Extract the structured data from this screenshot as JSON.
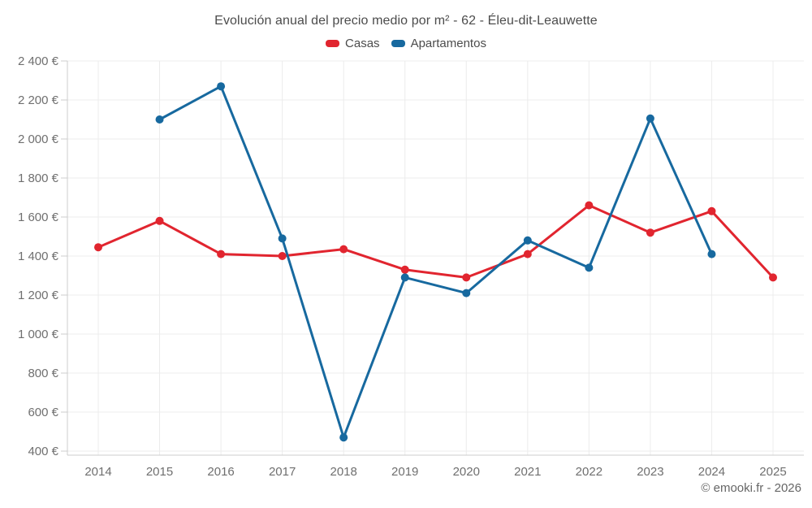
{
  "chart_data": {
    "type": "line",
    "title": "Evolución anual del precio medio por m² - 62 - Éleu-dit-Leauwette",
    "categories": [
      "2014",
      "2015",
      "2016",
      "2017",
      "2018",
      "2019",
      "2020",
      "2021",
      "2022",
      "2023",
      "2024",
      "2025"
    ],
    "series": [
      {
        "name": "Casas",
        "color": "#e1252f",
        "values": [
          1445,
          1580,
          1410,
          1400,
          1435,
          1330,
          1290,
          1410,
          1660,
          1520,
          1630,
          1290
        ]
      },
      {
        "name": "Apartamentos",
        "color": "#17699f",
        "values": [
          null,
          2100,
          2270,
          1490,
          470,
          1290,
          1210,
          1480,
          1340,
          2105,
          1410,
          null
        ]
      }
    ],
    "xlabel": "",
    "ylabel": "",
    "ylim": [
      400,
      2400
    ],
    "yticks": [
      400,
      600,
      800,
      1000,
      1200,
      1400,
      1600,
      1800,
      2000,
      2200,
      2400
    ],
    "ytick_labels": [
      "400 €",
      "600 €",
      "800 €",
      "1 000 €",
      "1 200 €",
      "1 400 €",
      "1 600 €",
      "1 800 €",
      "2 000 €",
      "2 200 €",
      "2 400 €"
    ],
    "grid": true,
    "legend_position": "top",
    "footer": "© emooki.fr - 2026",
    "colors": {
      "grid": "#ececec",
      "axis": "#cccccc",
      "tick_text": "#6f6f6f",
      "title_text": "#4c4c4c",
      "footer_text": "#666666",
      "background": "#ffffff"
    }
  }
}
